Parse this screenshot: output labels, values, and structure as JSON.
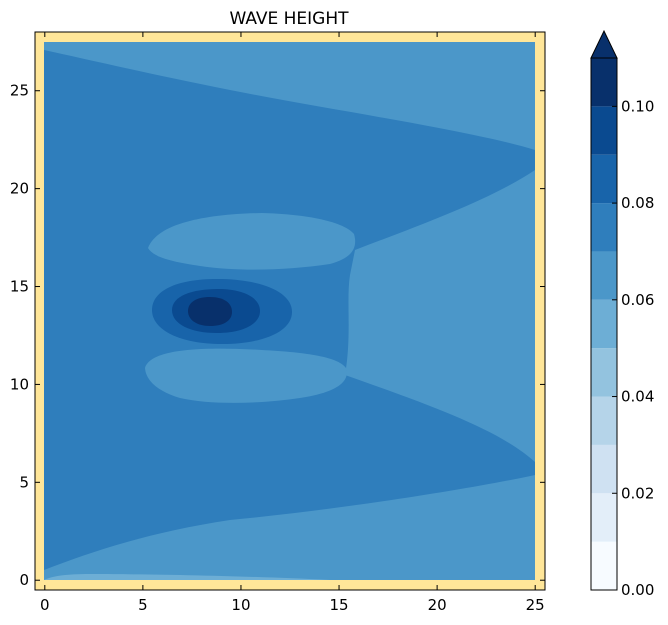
{
  "chart_data": {
    "type": "heatmap",
    "subtype": "filled-contour",
    "title": "WAVE HEIGHT",
    "xlabel": "",
    "ylabel": "",
    "xlim": [
      -0.5,
      25.5
    ],
    "ylim": [
      -0.5,
      28
    ],
    "grid": false,
    "x_ticks": [
      0,
      5,
      10,
      15,
      20,
      25
    ],
    "y_ticks": [
      0,
      5,
      10,
      15,
      20,
      25
    ],
    "domain_border_color": "#ffe699",
    "levels": [
      0.0,
      0.01,
      0.02,
      0.03,
      0.04,
      0.05,
      0.06,
      0.07,
      0.08,
      0.09,
      0.1,
      0.11
    ],
    "level_colors": [
      "#f7fbff",
      "#e3eef9",
      "#cfe1f2",
      "#b5d4e9",
      "#93c3df",
      "#6daed5",
      "#4b97c9",
      "#2f7ebc",
      "#1864aa",
      "#0a4a90",
      "#08306b"
    ],
    "extend": "max",
    "colorbar_ticks": [
      "0.00",
      "0.02",
      "0.04",
      "0.06",
      "0.08",
      "0.10"
    ],
    "source": {
      "x": 8.5,
      "y": 13.8,
      "peak": 0.11
    },
    "regions": [
      {
        "name": "background-field",
        "level_range": [
          0.07,
          0.08
        ]
      },
      {
        "name": "upper-edge-band",
        "level_range": [
          0.06,
          0.07
        ]
      },
      {
        "name": "right-upper-wedge",
        "level_range": [
          0.06,
          0.07
        ]
      },
      {
        "name": "right-lower-wedge",
        "level_range": [
          0.06,
          0.07
        ]
      },
      {
        "name": "bottom-edge-band",
        "level_range": [
          0.06,
          0.07
        ]
      },
      {
        "name": "right-middle-block",
        "level_range": [
          0.06,
          0.07
        ]
      },
      {
        "name": "lobe-above-source",
        "level_range": [
          0.06,
          0.07
        ]
      },
      {
        "name": "lobe-below-source",
        "level_range": [
          0.06,
          0.07
        ]
      },
      {
        "name": "source-ring-outer",
        "level_range": [
          0.08,
          0.09
        ]
      },
      {
        "name": "source-ring-middle",
        "level_range": [
          0.09,
          0.1
        ]
      },
      {
        "name": "source-core",
        "level_range": [
          0.1,
          0.11
        ]
      },
      {
        "name": "bottom-corner-strip",
        "level_range": [
          0.05,
          0.06
        ]
      }
    ]
  }
}
